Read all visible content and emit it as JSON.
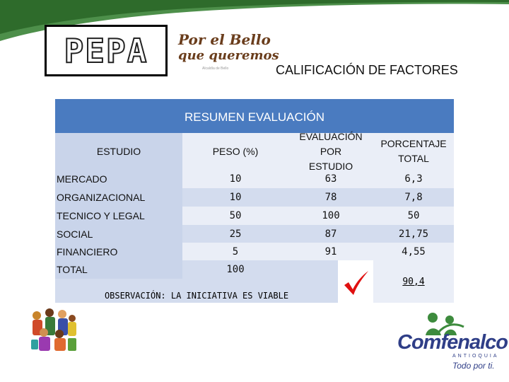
{
  "header": {
    "pepa_logo": "PEPA",
    "bello_logo": {
      "line1": "Por el Bello",
      "line2": "que queremos",
      "subtitle": "Alcaldía de Bello"
    },
    "title": "CALIFICACIÓN DE FACTORES"
  },
  "table": {
    "title": "RESUMEN EVALUACIÓN",
    "columns": [
      "ESTUDIO",
      "PESO (%)",
      "EVALUACIÓN POR ESTUDIO",
      "PORCENTAJE TOTAL"
    ],
    "rows": [
      {
        "estudio": "MERCADO",
        "peso": "10",
        "evaluacion": "63",
        "porcentaje": "6,3"
      },
      {
        "estudio": "ORGANIZACIONAL",
        "peso": "10",
        "evaluacion": "78",
        "porcentaje": "7,8"
      },
      {
        "estudio": "TECNICO Y LEGAL",
        "peso": "50",
        "evaluacion": "100",
        "porcentaje": "50"
      },
      {
        "estudio": "SOCIAL",
        "peso": "25",
        "evaluacion": "87",
        "porcentaje": "21,75"
      },
      {
        "estudio": "FINANCIERO",
        "peso": "5",
        "evaluacion": "91",
        "porcentaje": "4,55"
      }
    ],
    "total": {
      "label": "TOTAL",
      "peso": "100",
      "porcentaje": "90,4"
    },
    "observation": "OBSERVACIÓN: LA INICIATIVA ES VIABLE"
  },
  "footer": {
    "comfenalco": {
      "name": "Comfenalco",
      "region": "ANTIOQUIA",
      "slogan": "Todo por ti."
    }
  },
  "colors": {
    "header_blue": "#4a7bc0",
    "check_red": "#e01010",
    "brand_navy": "#2f3e87",
    "brand_green": "#3d8b3d"
  },
  "icons": [
    "checkmark-icon",
    "people-clipart",
    "comfenalco-figures-logo"
  ]
}
